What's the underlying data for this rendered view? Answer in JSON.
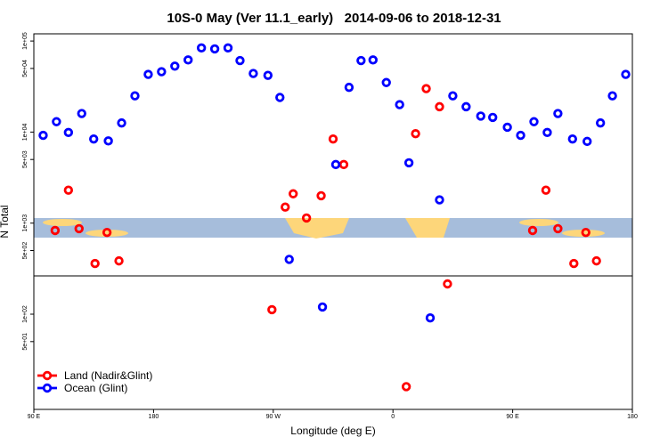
{
  "chart_data": {
    "type": "scatter",
    "title": "10S-0 May (Ver 11.1_early)   2014-09-06 to 2018-12-31",
    "xlabel": "Longitude (deg E)",
    "ylabel": "N Total",
    "xlim": [
      90,
      540
    ],
    "xticks": [
      {
        "value": 90,
        "label": "90 E"
      },
      180,
      {
        "value": 270,
        "label": "90 W"
      },
      {
        "value": 360,
        "label": "0"
      },
      {
        "value": 450,
        "label": "90 E"
      },
      {
        "value": 540,
        "label": "180"
      }
    ],
    "ylim": [
      9,
      120000
    ],
    "log_y": true,
    "yticks": [
      {
        "value": 50,
        "label": "5e+01"
      },
      {
        "value": 100,
        "label": "1e+02"
      },
      {
        "value": 500,
        "label": "5e+02"
      },
      {
        "value": 1000,
        "label": "1e+03"
      },
      {
        "value": 5000,
        "label": "5e+03"
      },
      {
        "value": 10000,
        "label": "1e+04"
      },
      {
        "value": 50000,
        "label": "5e+04"
      },
      {
        "value": 100000,
        "label": "1e+05"
      }
    ],
    "legend": "lower left",
    "series": [
      {
        "name": "Land (Nadir&Glint)",
        "color": "#ff0000",
        "x": [
          106,
          116,
          124,
          136,
          145,
          154,
          269,
          279,
          285,
          295,
          306,
          315,
          323,
          370,
          377,
          385,
          395,
          401,
          465,
          475,
          484,
          496,
          505,
          513
        ],
        "values": [
          830,
          2300,
          870,
          360,
          790,
          385,
          112,
          1500,
          2100,
          1140,
          2000,
          8400,
          4400,
          16,
          9600,
          30000,
          19000,
          215,
          830,
          2300,
          870,
          360,
          790,
          385
        ]
      },
      {
        "name": "Ocean (Glint)",
        "color": "#0000ff",
        "x": [
          97,
          107,
          116,
          126,
          135,
          146,
          156,
          166,
          176,
          186,
          196,
          206,
          216,
          226,
          236,
          245,
          255,
          266,
          275,
          282,
          307,
          317,
          327,
          336,
          345,
          355,
          365,
          372,
          388,
          395,
          405,
          415,
          426,
          435,
          446,
          456,
          466,
          476,
          484,
          495,
          506,
          516,
          525,
          535
        ],
        "values": [
          9200,
          13000,
          9900,
          16000,
          8400,
          8000,
          12600,
          25000,
          43000,
          46000,
          53000,
          62000,
          84000,
          82000,
          84000,
          61000,
          44000,
          42000,
          24000,
          400,
          120,
          4400,
          31000,
          61000,
          62000,
          35000,
          20000,
          4600,
          91,
          1800,
          25000,
          19000,
          15000,
          14500,
          11300,
          9200,
          13000,
          9900,
          16000,
          8400,
          7900,
          12600,
          25000,
          43000
        ]
      }
    ]
  }
}
